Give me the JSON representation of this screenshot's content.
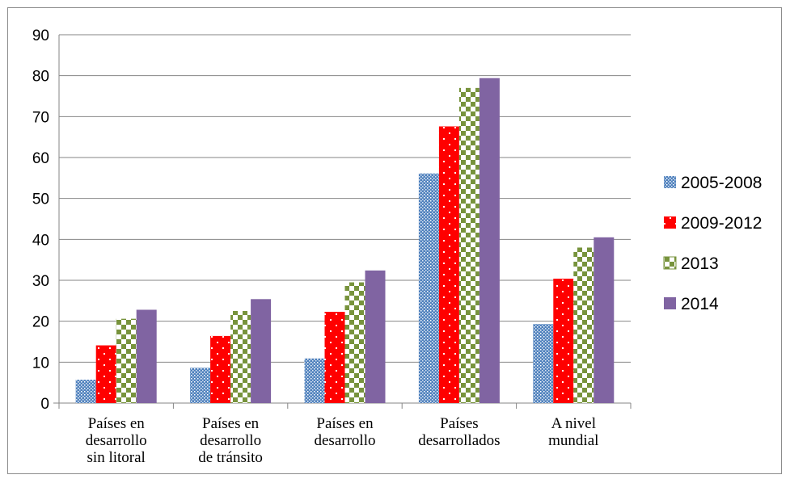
{
  "chart_data": {
    "type": "bar",
    "categories": [
      [
        "Países en",
        "desarrollo",
        "sin litoral"
      ],
      [
        "Países en",
        "desarrollo",
        "de tránsito"
      ],
      [
        "Países en",
        "desarrollo"
      ],
      [
        "Países",
        "desarrollados"
      ],
      [
        "A nivel",
        "mundial"
      ]
    ],
    "series": [
      {
        "name": "2005-2008",
        "values": [
          5.7,
          8.6,
          10.9,
          56.1,
          19.3
        ],
        "color": "#4f81bd",
        "pattern": "dots-blue"
      },
      {
        "name": "2009-2012",
        "values": [
          14.1,
          16.4,
          22.3,
          67.6,
          30.4
        ],
        "color": "#ff0000",
        "pattern": "dots-red"
      },
      {
        "name": "2013",
        "values": [
          20.6,
          22.5,
          29.5,
          77.0,
          38.0
        ],
        "color": "#77933c",
        "pattern": "checker-green"
      },
      {
        "name": "2014",
        "values": [
          22.8,
          25.4,
          32.4,
          79.4,
          40.5
        ],
        "color": "#8064a2",
        "pattern": "solid"
      }
    ],
    "ylim": [
      0,
      90
    ],
    "yticks": [
      0,
      10,
      20,
      30,
      40,
      50,
      60,
      70,
      80,
      90
    ],
    "grid": true,
    "legend_position": "right",
    "title": "",
    "xlabel": "",
    "ylabel": ""
  }
}
